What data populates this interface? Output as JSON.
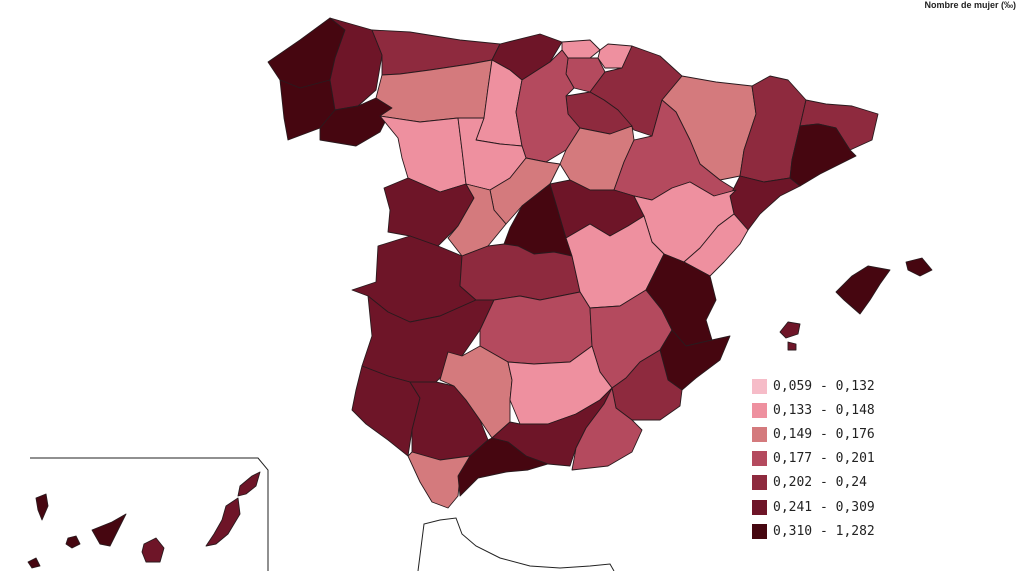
{
  "title": "Nombre de mujer (‰)",
  "legend": [
    {
      "label": "0,059 - 0,132",
      "color": "#f6bcc8"
    },
    {
      "label": "0,133 - 0,148",
      "color": "#ee909f"
    },
    {
      "label": "0,149 - 0,176",
      "color": "#d47a7d"
    },
    {
      "label": "0,177 - 0,201",
      "color": "#b44a5e"
    },
    {
      "label": "0,202 - 0,24",
      "color": "#8e2a3e"
    },
    {
      "label": "0,241 - 0,309",
      "color": "#6e1528"
    },
    {
      "label": "0,310 - 1,282",
      "color": "#460610"
    }
  ]
}
